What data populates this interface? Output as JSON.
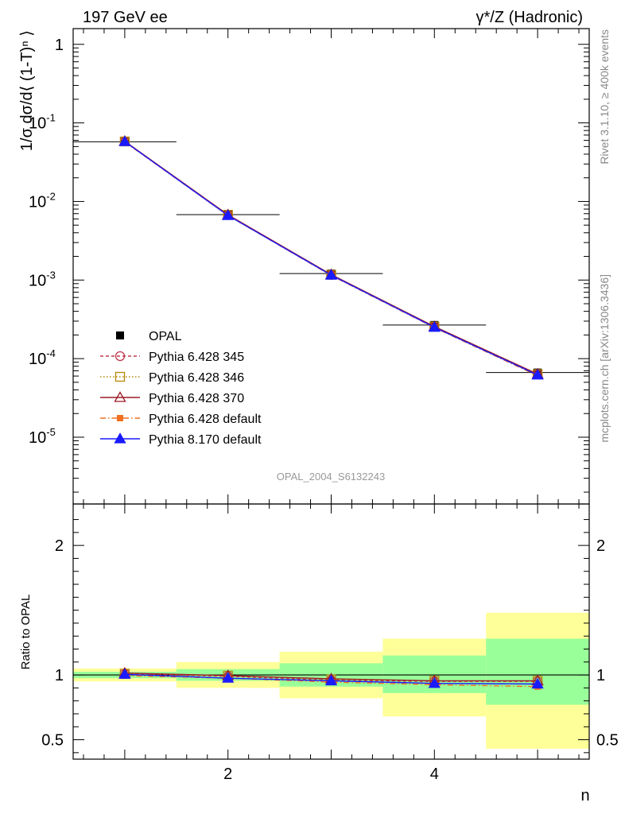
{
  "chart_data": {
    "type": "line",
    "top_left_label": "197 GeV ee",
    "top_right_label": "γ*/Z (Hadronic)",
    "ylabel": "1/σ dσ/d⟨ (1-T)ⁿ ⟩",
    "xlabel": "n",
    "ratio_ylabel": "Ratio to OPAL",
    "watermark": "OPAL_2004_S6132243",
    "side_text_top": "Rivet 3.1.10, ≥ 400k events",
    "side_text_bottom": "mcplots.cern.ch [arXiv:1306.3436]",
    "x": [
      1,
      2,
      3,
      4,
      5
    ],
    "xlim": [
      0.5,
      5.5
    ],
    "x_ticks": [
      2,
      4
    ],
    "main_ylim_log10": [
      -5.85,
      0.2
    ],
    "main_yticks": [
      {
        "exp": 0,
        "label": "1"
      },
      {
        "exp": -1,
        "label": "10",
        "sup": "-1"
      },
      {
        "exp": -2,
        "label": "10",
        "sup": "-2"
      },
      {
        "exp": -3,
        "label": "10",
        "sup": "-3"
      },
      {
        "exp": -4,
        "label": "10",
        "sup": "-4"
      },
      {
        "exp": -5,
        "label": "10",
        "sup": "-5"
      }
    ],
    "ratio_ylim": [
      0.35,
      2.32
    ],
    "ratio_yticks": [
      {
        "value": 0.5,
        "label": "0.5"
      },
      {
        "value": 1,
        "label": "1"
      },
      {
        "value": 2,
        "label": "2"
      }
    ],
    "data": {
      "name": "OPAL",
      "values": [
        0.0575,
        0.0068,
        0.00121,
        0.000268,
        6.65e-05
      ],
      "band_inner": [
        [
          0.975,
          1.025
        ],
        [
          0.955,
          1.045
        ],
        [
          0.91,
          1.09
        ],
        [
          0.86,
          1.15
        ],
        [
          0.77,
          1.28
        ]
      ],
      "band_outer": [
        [
          0.95,
          1.05
        ],
        [
          0.9,
          1.1
        ],
        [
          0.82,
          1.18
        ],
        [
          0.68,
          1.28
        ],
        [
          0.43,
          1.48
        ]
      ]
    },
    "series": [
      {
        "name": "Pythia 6.428 345",
        "color": "#c0394f",
        "dash": "4,3",
        "marker": "circle-open",
        "ratios": [
          1.01,
          0.99,
          0.96,
          0.95,
          0.95
        ]
      },
      {
        "name": "Pythia 6.428 346",
        "color": "#b8860b",
        "dash": "1.5,2.5",
        "marker": "square-open",
        "ratios": [
          1.01,
          0.995,
          0.965,
          0.955,
          0.955
        ]
      },
      {
        "name": "Pythia 6.428 370",
        "color": "#9b1b2a",
        "dash": "",
        "marker": "triangle-open",
        "ratios": [
          1.015,
          0.995,
          0.97,
          0.955,
          0.955
        ]
      },
      {
        "name": "Pythia 6.428 default",
        "color": "#f07020",
        "dash": "7,3,1.5,3",
        "marker": "square-filled",
        "ratios": [
          0.995,
          0.975,
          0.945,
          0.925,
          0.91
        ]
      },
      {
        "name": "Pythia 8.170 default",
        "color": "#1a1aff",
        "dash": "",
        "marker": "triangle-filled",
        "ratios": [
          1.005,
          0.975,
          0.955,
          0.935,
          0.93
        ]
      }
    ],
    "colors": {
      "band_inner": "#99ff99",
      "band_outer": "#ffff99"
    }
  }
}
